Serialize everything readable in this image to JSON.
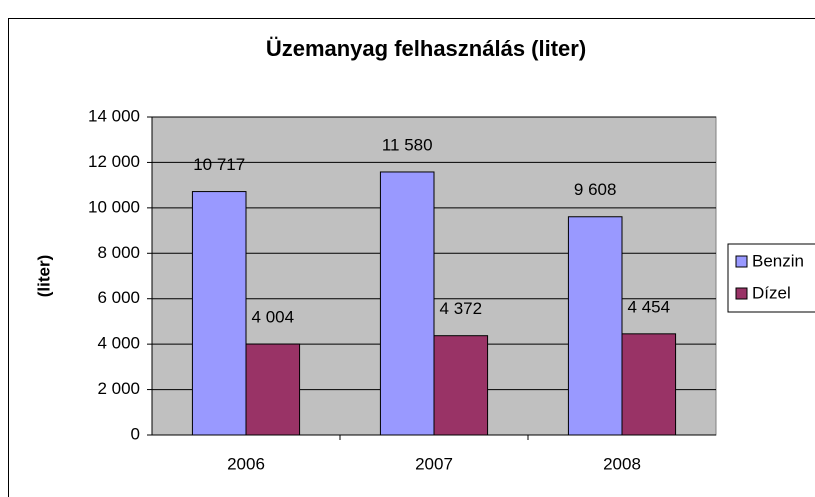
{
  "chart_data": {
    "type": "bar",
    "title": "Üzemanyag felhasználás (liter)",
    "y_label": "(liter)",
    "categories": [
      "2006",
      "2007",
      "2008"
    ],
    "series": [
      {
        "name": "Benzin",
        "color": "#9999ff",
        "values": [
          10717,
          11580,
          9608
        ],
        "value_labels": [
          "10 717",
          "11 580",
          "9 608"
        ]
      },
      {
        "name": "Dízel",
        "color": "#993366",
        "values": [
          4004,
          4372,
          4454
        ],
        "value_labels": [
          "4 004",
          "4 372",
          "4 454"
        ]
      }
    ],
    "ylim": [
      0,
      14000
    ],
    "yticks": [
      0,
      {
        "value": 2000,
        "label": "2 000"
      },
      {
        "value": 4000,
        "label": "4 000"
      },
      {
        "value": 6000,
        "label": "6 000"
      },
      {
        "value": 8000,
        "label": "8 000"
      },
      {
        "value": 10000,
        "label": "10 000"
      },
      {
        "value": 12000,
        "label": "12 000"
      },
      {
        "value": 14000,
        "label": "14 000"
      }
    ],
    "grid": true,
    "legend": "right",
    "plot_background": "#c0c0c0"
  }
}
